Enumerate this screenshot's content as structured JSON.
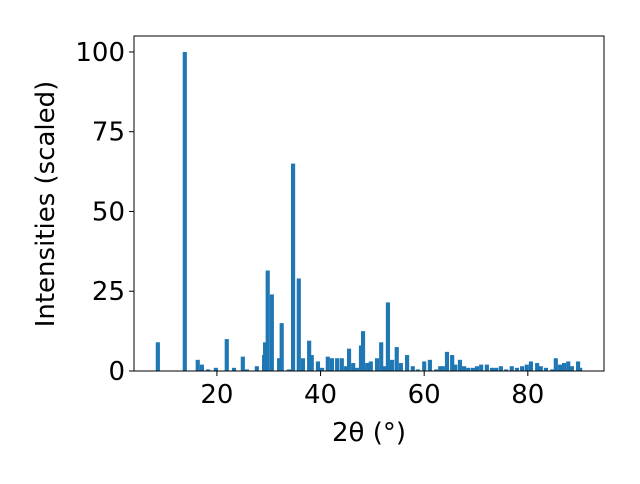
{
  "chart_data": {
    "type": "bar",
    "xlabel": "2θ (°)",
    "ylabel": "Intensities (scaled)",
    "color": "#1f77b4",
    "x": [
      8.6,
      13.8,
      16.3,
      17.1,
      18.3,
      19.8,
      21.9,
      23.3,
      25.0,
      25.8,
      27.7,
      29.1,
      29.3,
      29.8,
      30.6,
      32.0,
      32.5,
      33.9,
      34.7,
      35.8,
      36.6,
      37.8,
      38.3,
      39.5,
      40.3,
      41.4,
      42.2,
      43.2,
      44.1,
      44.9,
      45.5,
      46.3,
      47.0,
      47.8,
      48.2,
      49.0,
      49.7,
      50.9,
      51.7,
      52.4,
      53.0,
      53.8,
      54.7,
      55.5,
      56.7,
      57.8,
      58.8,
      60.0,
      61.1,
      62.3,
      63.1,
      63.6,
      64.4,
      65.4,
      66.0,
      66.9,
      67.7,
      68.5,
      69.4,
      70.2,
      71.0,
      72.1,
      73.1,
      73.9,
      74.8,
      75.8,
      76.9,
      77.9,
      78.9,
      79.8,
      80.6,
      81.8,
      82.5,
      83.5,
      84.7,
      85.4,
      86.2,
      87.0,
      87.8,
      88.5,
      89.7,
      90.1
    ],
    "values": [
      9,
      100,
      3.5,
      2,
      0.5,
      1,
      10,
      1,
      4.5,
      0.5,
      1.5,
      5,
      9,
      31.5,
      24,
      4,
      15,
      0.5,
      65,
      29,
      4,
      9.5,
      5,
      3,
      1,
      4.5,
      4,
      4,
      4,
      1.5,
      7,
      2.5,
      1,
      8,
      12.5,
      2.5,
      3,
      4,
      9,
      1.5,
      21.5,
      3.5,
      7.5,
      2.5,
      5,
      1.5,
      0.5,
      3,
      3.5,
      0.5,
      1.5,
      1.5,
      6,
      5,
      2,
      3.5,
      1.5,
      1,
      1,
      1.5,
      2,
      2,
      1,
      1,
      1.5,
      0.5,
      1.5,
      1,
      1.5,
      2,
      3,
      2.5,
      1.5,
      1,
      0.5,
      4,
      2,
      2.5,
      3,
      1.5,
      3,
      1
    ],
    "bar_width": 0.8,
    "xlim": [
      4.0,
      94.7
    ],
    "ylim": [
      0,
      105
    ],
    "xticks": [
      20,
      40,
      60,
      80
    ],
    "yticks": [
      0,
      25,
      50,
      75,
      100
    ]
  }
}
